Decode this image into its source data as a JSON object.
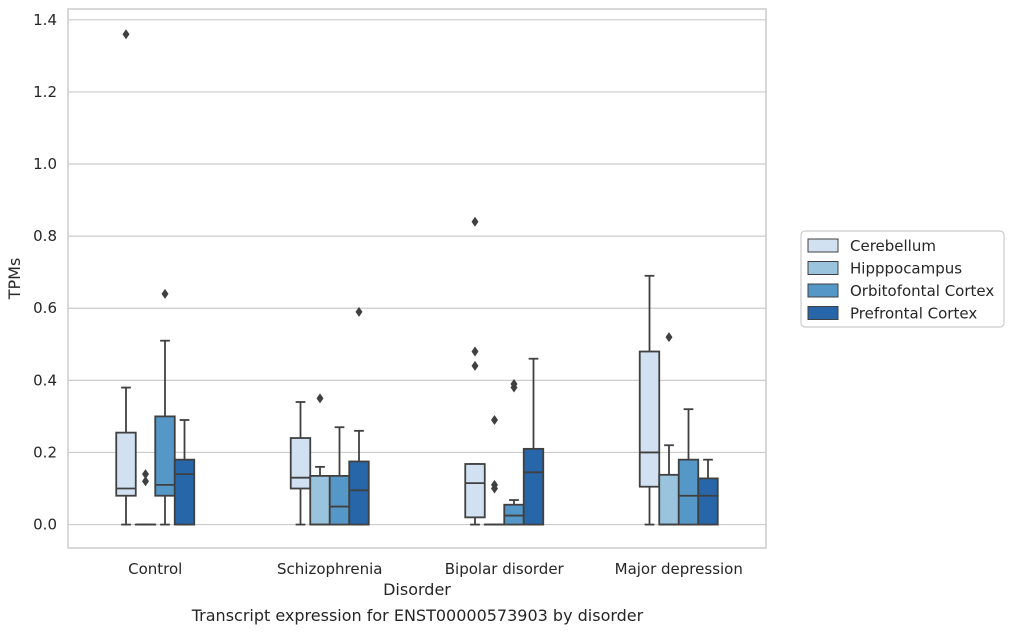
{
  "chart_data": {
    "type": "box",
    "title": "",
    "xlabel": "Disorder",
    "ylabel": "TPMs",
    "caption": "Transcript expression for ENST00000573903 by disorder",
    "ylim": [
      -0.065,
      1.43
    ],
    "yticks": [
      0.0,
      0.2,
      0.4,
      0.6,
      0.8,
      1.0,
      1.2,
      1.4
    ],
    "ytick_labels": [
      "0.0",
      "0.2",
      "0.4",
      "0.6",
      "0.8",
      "1.0",
      "1.2",
      "1.4"
    ],
    "grid": "horizontal",
    "legend_position": "right",
    "categories": [
      "Control",
      "Schizophrenia",
      "Bipolar disorder",
      "Major depression"
    ],
    "series": [
      {
        "name": "Cerebellum",
        "color": "#d2e1f1",
        "boxes": [
          {
            "q1": 0.08,
            "median": 0.1,
            "q3": 0.255,
            "whisker_low": 0.0,
            "whisker_high": 0.38,
            "outliers": [
              1.36
            ]
          },
          {
            "q1": 0.1,
            "median": 0.13,
            "q3": 0.24,
            "whisker_low": 0.0,
            "whisker_high": 0.34,
            "outliers": []
          },
          {
            "q1": 0.02,
            "median": 0.115,
            "q3": 0.168,
            "whisker_low": 0.0,
            "whisker_high": 0.168,
            "outliers": [
              0.84,
              0.48,
              0.44
            ]
          },
          {
            "q1": 0.105,
            "median": 0.2,
            "q3": 0.48,
            "whisker_low": 0.0,
            "whisker_high": 0.69,
            "outliers": []
          }
        ]
      },
      {
        "name": "Hipppocampus",
        "color": "#9ac4de",
        "boxes": [
          {
            "q1": 0.0,
            "median": 0.0,
            "q3": 0.0,
            "whisker_low": 0.0,
            "whisker_high": 0.0,
            "outliers": [
              0.14,
              0.12
            ]
          },
          {
            "q1": 0.0,
            "median": 0.0,
            "q3": 0.135,
            "whisker_low": 0.0,
            "whisker_high": 0.16,
            "outliers": [
              0.35
            ]
          },
          {
            "q1": 0.0,
            "median": 0.0,
            "q3": 0.0,
            "whisker_low": 0.0,
            "whisker_high": 0.0,
            "outliers": [
              0.29,
              0.11,
              0.1
            ]
          },
          {
            "q1": 0.0,
            "median": 0.0,
            "q3": 0.138,
            "whisker_low": 0.0,
            "whisker_high": 0.22,
            "outliers": [
              0.52
            ]
          }
        ]
      },
      {
        "name": "Orbitofontal Cortex",
        "color": "#5598c7",
        "boxes": [
          {
            "q1": 0.08,
            "median": 0.11,
            "q3": 0.3,
            "whisker_low": 0.0,
            "whisker_high": 0.51,
            "outliers": [
              0.64
            ]
          },
          {
            "q1": 0.0,
            "median": 0.05,
            "q3": 0.135,
            "whisker_low": 0.0,
            "whisker_high": 0.27,
            "outliers": []
          },
          {
            "q1": 0.0,
            "median": 0.025,
            "q3": 0.055,
            "whisker_low": 0.0,
            "whisker_high": 0.068,
            "outliers": [
              0.39,
              0.38
            ]
          },
          {
            "q1": 0.0,
            "median": 0.08,
            "q3": 0.18,
            "whisker_low": 0.0,
            "whisker_high": 0.32,
            "outliers": []
          }
        ]
      },
      {
        "name": "Prefrontal Cortex",
        "color": "#2766a8",
        "boxes": [
          {
            "q1": 0.0,
            "median": 0.14,
            "q3": 0.18,
            "whisker_low": 0.0,
            "whisker_high": 0.29,
            "outliers": []
          },
          {
            "q1": 0.0,
            "median": 0.095,
            "q3": 0.175,
            "whisker_low": 0.0,
            "whisker_high": 0.26,
            "outliers": [
              0.59
            ]
          },
          {
            "q1": 0.0,
            "median": 0.145,
            "q3": 0.21,
            "whisker_low": 0.0,
            "whisker_high": 0.46,
            "outliers": []
          },
          {
            "q1": 0.0,
            "median": 0.08,
            "q3": 0.128,
            "whisker_low": 0.0,
            "whisker_high": 0.18,
            "outliers": []
          }
        ]
      }
    ],
    "colors": {
      "grid": "#cccccc",
      "frame": "#cccccc",
      "line": "#404040",
      "text": "#262626"
    }
  }
}
